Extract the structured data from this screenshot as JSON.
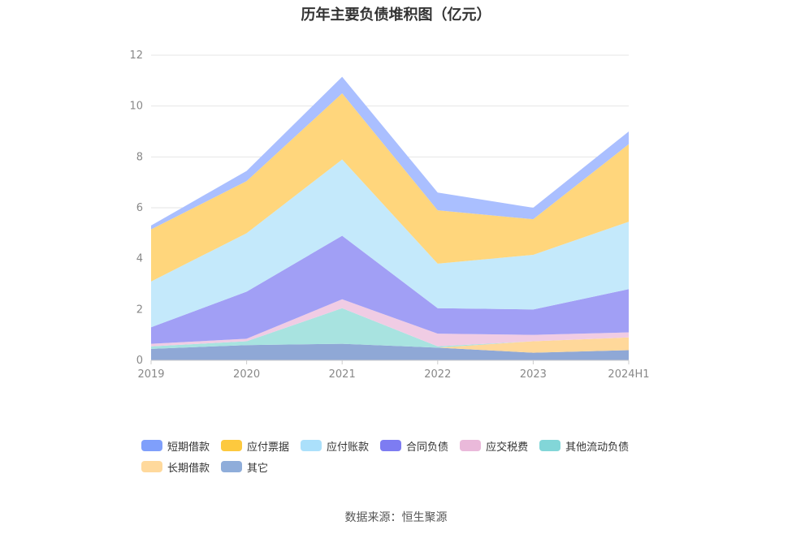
{
  "chart_data": {
    "type": "area",
    "stacked": true,
    "title": "历年主要负债堆积图（亿元）",
    "categories": [
      "2019",
      "2020",
      "2021",
      "2022",
      "2023",
      "2024H1"
    ],
    "ylim": [
      0,
      12
    ],
    "yticks": [
      0,
      2,
      4,
      6,
      8,
      10,
      12
    ],
    "grid": true,
    "legend_position": "bottom",
    "series": [
      {
        "name": "其它",
        "color": "#8fa8d6",
        "values": [
          0.45,
          0.6,
          0.65,
          0.5,
          0.3,
          0.4
        ]
      },
      {
        "name": "长期借款",
        "color": "#ffd89a",
        "values": [
          0.0,
          0.0,
          0.0,
          0.0,
          0.45,
          0.5
        ]
      },
      {
        "name": "其他流动负债",
        "color": "#a8e3e0",
        "values": [
          0.1,
          0.15,
          1.4,
          0.05,
          0.0,
          0.0
        ]
      },
      {
        "name": "应交税费",
        "color": "#f0cce4",
        "values": [
          0.1,
          0.1,
          0.35,
          0.5,
          0.25,
          0.2
        ]
      },
      {
        "name": "合同负债",
        "color": "#a19ff5",
        "values": [
          0.65,
          1.85,
          2.5,
          1.0,
          1.0,
          1.7
        ]
      },
      {
        "name": "应付账款",
        "color": "#c4e9fb",
        "values": [
          1.8,
          2.3,
          3.0,
          1.75,
          2.15,
          2.65
        ]
      },
      {
        "name": "应付票据",
        "color": "#ffd67c",
        "values": [
          2.05,
          2.05,
          2.6,
          2.1,
          1.4,
          3.05
        ]
      },
      {
        "name": "短期借款",
        "color": "#aabfff",
        "values": [
          0.15,
          0.4,
          0.65,
          0.7,
          0.45,
          0.5
        ]
      }
    ]
  },
  "legend": [
    {
      "name": "短期借款",
      "color": "#7f9ffb"
    },
    {
      "name": "应付票据",
      "color": "#fdc93e"
    },
    {
      "name": "应付账款",
      "color": "#abe0fb"
    },
    {
      "name": "合同负债",
      "color": "#7d7cf2"
    },
    {
      "name": "应交税费",
      "color": "#eab9da"
    },
    {
      "name": "其他流动负债",
      "color": "#82d6d8"
    },
    {
      "name": "长期借款",
      "color": "#ffd99c"
    },
    {
      "name": "其它",
      "color": "#8fadda"
    }
  ],
  "source": "数据来源：恒生聚源"
}
